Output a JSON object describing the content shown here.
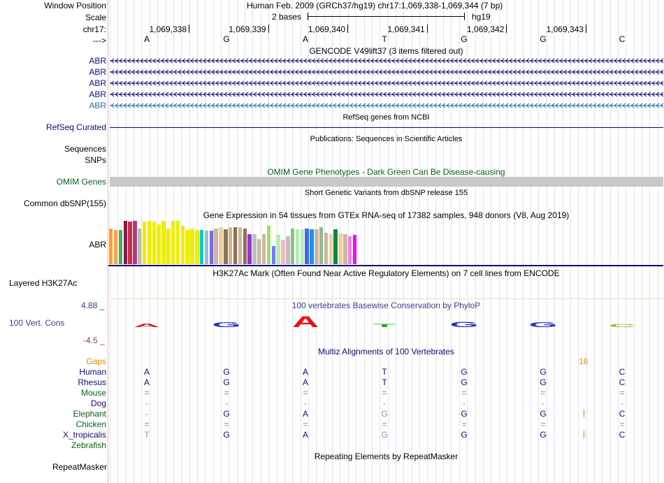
{
  "header": {
    "window_position_label": "Window Position",
    "window_position_value": "Human Feb. 2009 (GRCh37/hg19)   chr17:1,069,338-1,069,344 (7 bp)",
    "scale_label": "Scale",
    "scale_text": "2 bases",
    "scale_assembly": "hg19",
    "chrom_label": "chr17:",
    "strand_label": "--->"
  },
  "ruler": {
    "ticks": [
      "1,069,338",
      "1,069,339",
      "1,069,340",
      "1,069,341",
      "1,069,342",
      "1,069,343"
    ],
    "bases": [
      "A",
      "G",
      "A",
      "T",
      "G",
      "G",
      "C"
    ]
  },
  "tracks": {
    "gencode": {
      "title": "GENCODE V49lift37 (3 items filtered out)",
      "items": [
        "ABR",
        "ABR",
        "ABR",
        "ABR",
        "ABR"
      ],
      "color": "#0c0c78",
      "last_color": "#1e6fa8"
    },
    "refseq": {
      "title": "RefSeq genes from NCBI",
      "label": "RefSeq Curated",
      "color": "#0c0c78"
    },
    "publications": {
      "title": "Publications: Sequences in Scientific Articles",
      "label1": "Sequences",
      "label2": "SNPs"
    },
    "omim": {
      "title": "OMIM Gene Phenotypes - Dark Green Can Be Disease-causing",
      "label": "OMIM Genes",
      "color": "#0b5e18",
      "bar_color": "#c8c8c8"
    },
    "dbsnp": {
      "title": "Short Genetic Variants from dbSNP release 155",
      "label": "Common dbSNP(155)"
    },
    "gtex": {
      "title": "Gene Expression in 54 tissues from GTEx RNA-seq of 17382 samples, 948 donors (V8, Aug 2019)",
      "label": "ABR",
      "bars": [
        {
          "c": "#ff9f31",
          "v": 0.83
        },
        {
          "c": "#ffa54f",
          "v": 0.79
        },
        {
          "c": "#3eb264",
          "v": 0.79
        },
        {
          "c": "#8b1a43",
          "v": 1.0
        },
        {
          "c": "#cd2a4f",
          "v": 0.98
        },
        {
          "c": "#a83f75",
          "v": 1.0
        },
        {
          "c": "#b8b8b8",
          "v": 0.83
        },
        {
          "c": "#ecec00",
          "v": 0.98
        },
        {
          "c": "#eeee00",
          "v": 1.0
        },
        {
          "c": "#eeee00",
          "v": 0.98
        },
        {
          "c": "#eeee00",
          "v": 0.92
        },
        {
          "c": "#eeee00",
          "v": 1.0
        },
        {
          "c": "#eeee00",
          "v": 0.83
        },
        {
          "c": "#eeee00",
          "v": 1.0
        },
        {
          "c": "#eeee00",
          "v": 1.0
        },
        {
          "c": "#eeee00",
          "v": 0.88
        },
        {
          "c": "#eeee00",
          "v": 0.79
        },
        {
          "c": "#eeee00",
          "v": 0.83
        },
        {
          "c": "#eeee00",
          "v": 0.79
        },
        {
          "c": "#00cdcd",
          "v": 0.79
        },
        {
          "c": "#9ac0cd",
          "v": 0.77
        },
        {
          "c": "#7a67ee",
          "v": 0.77
        },
        {
          "c": "#cdb79e",
          "v": 0.83
        },
        {
          "c": "#eecfa1",
          "v": 0.86
        },
        {
          "c": "#8b7355",
          "v": 0.81
        },
        {
          "c": "#d2b48c",
          "v": 0.86
        },
        {
          "c": "#8b7355",
          "v": 0.85
        },
        {
          "c": "#cdb79e",
          "v": 0.85
        },
        {
          "c": "#8b7355",
          "v": 0.83
        },
        {
          "c": "#9a32cd",
          "v": 0.69
        },
        {
          "c": "#bebebe",
          "v": 0.7
        },
        {
          "c": "#cdb79e",
          "v": 0.58
        },
        {
          "c": "#cdb79e",
          "v": 0.69
        },
        {
          "c": "#a6d96a",
          "v": 0.88
        },
        {
          "c": "#7777ff",
          "v": 0.42
        },
        {
          "c": "#b4eeb4",
          "v": 0.67
        },
        {
          "c": "#ffb6c1",
          "v": 0.56
        },
        {
          "c": "#bebebe",
          "v": 0.65
        },
        {
          "c": "#8fbc8f",
          "v": 0.83
        },
        {
          "c": "#b4eeb4",
          "v": 0.81
        },
        {
          "c": "#b4eeb4",
          "v": 0.81
        },
        {
          "c": "#4169e1",
          "v": 0.83
        },
        {
          "c": "#1e90ff",
          "v": 0.81
        },
        {
          "c": "#cdb79e",
          "v": 0.81
        },
        {
          "c": "#8fbc8f",
          "v": 0.86
        },
        {
          "c": "#cdb79e",
          "v": 0.72
        },
        {
          "c": "#eecfa1",
          "v": 0.69
        },
        {
          "c": "#008b45",
          "v": 0.81
        },
        {
          "c": "#eecfa1",
          "v": 0.71
        },
        {
          "c": "#cdb79e",
          "v": 0.69
        },
        {
          "c": "#ee82ee",
          "v": 0.65
        },
        {
          "c": "#ff00ff",
          "v": 0.67
        }
      ]
    },
    "h3k27ac": {
      "title": "H3K27Ac Mark (Often Found Near Active Regulatory Elements) on 7 cell lines from ENCODE",
      "label": "Layered H3K27Ac"
    },
    "phylop": {
      "title": "100 vertebrates Basewise Conservation by PhyloP",
      "label": "100 Vert. Cons",
      "max_label": "4.88 _",
      "min_label": "-4.5 _",
      "max_color": "#3c3c8c",
      "min_color": "#8c3c3c",
      "glyphs": [
        {
          "b": "A",
          "color": "#cc2222",
          "scale": 0.35
        },
        {
          "b": "G",
          "color": "#2233cc",
          "scale": 0.45
        },
        {
          "b": "A",
          "color": "#ee1111",
          "scale": 1.0
        },
        {
          "b": "T",
          "color": "#22aa22",
          "scale": 0.3
        },
        {
          "b": "G",
          "color": "#2233cc",
          "scale": 0.5
        },
        {
          "b": "G",
          "color": "#2233cc",
          "scale": 0.45
        },
        {
          "b": "C",
          "color": "#aaaa22",
          "scale": 0.3
        }
      ]
    },
    "multiz": {
      "title": "Multiz Alignments of 100 Vertebrates",
      "gaps_label": "Gaps",
      "gaps_value": "16",
      "gaps_color": "#e08a00",
      "species": [
        {
          "name": "Human",
          "color": "#0c0c78",
          "bases": [
            "A",
            "G",
            "A",
            "T",
            "G",
            "G",
            "C"
          ]
        },
        {
          "name": "Rhesus",
          "color": "#0c0c78",
          "bases": [
            "A",
            "G",
            "A",
            "T",
            "G",
            "G",
            "C"
          ]
        },
        {
          "name": "Mouse",
          "color": "#0b5e18",
          "bases": [
            "=",
            "=",
            "=",
            "=",
            "=",
            "=",
            "="
          ]
        },
        {
          "name": "Dog",
          "color": "#0c0c78",
          "bases": [
            "-",
            "-",
            "-",
            "-",
            "-",
            "-",
            "-"
          ]
        },
        {
          "name": "Elephant",
          "color": "#0b5e18",
          "bases": [
            "-",
            "G",
            "A",
            "G",
            "G",
            "G",
            "C"
          ]
        },
        {
          "name": "Chicken",
          "color": "#0b5e18",
          "bases": [
            "=",
            "=",
            "=",
            "=",
            "=",
            "=",
            "="
          ]
        },
        {
          "name": "X_tropicalis",
          "color": "#0c0c78",
          "bases": [
            "T",
            "G",
            "A",
            "G",
            "G",
            "G",
            "C"
          ]
        },
        {
          "name": "Zebrafish",
          "color": "#0b5e18",
          "bases": [
            "",
            "",
            "",
            "",
            "",
            "",
            ""
          ]
        }
      ]
    },
    "repeatmasker": {
      "title": "Repeating Elements by RepeatMasker",
      "label": "RepeatMasker"
    }
  }
}
